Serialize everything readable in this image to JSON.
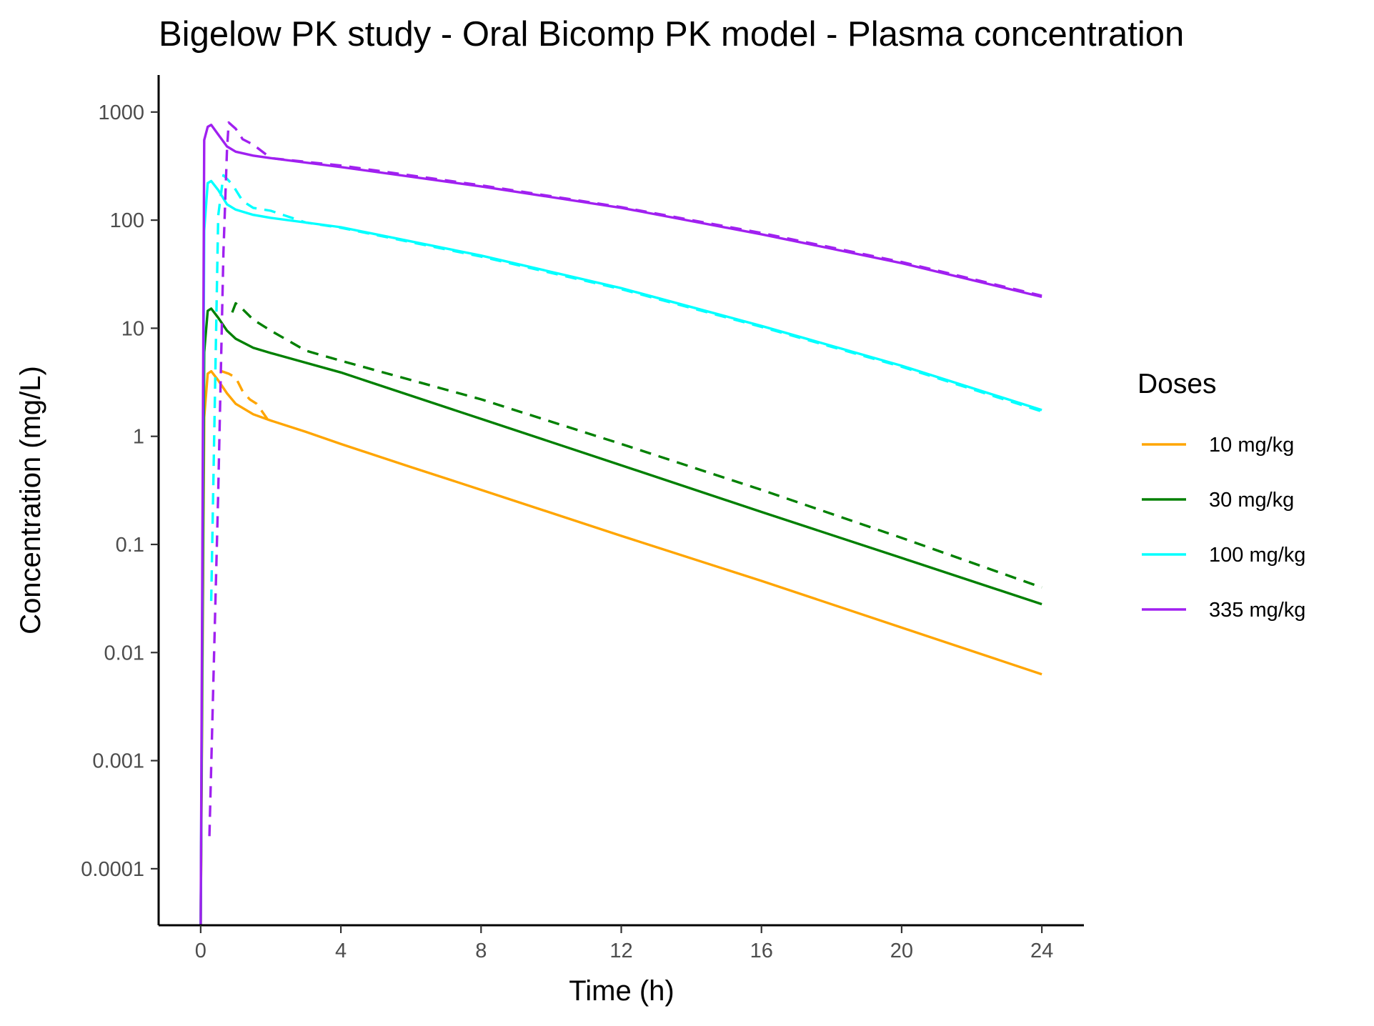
{
  "chart_data": {
    "type": "line",
    "title": "Bigelow PK study - Oral Bicomp PK model - Plasma concentration",
    "xlabel": "Time (h)",
    "ylabel": "Concentration (mg/L)",
    "x_scale": "linear",
    "y_scale": "log10",
    "xlim": [
      -1.2,
      25.2
    ],
    "ylim": [
      3e-05,
      2200
    ],
    "x_ticks": [
      0,
      4,
      8,
      12,
      16,
      20,
      24
    ],
    "y_ticks": [
      {
        "value": 0.0001,
        "label": "0.0001"
      },
      {
        "value": 0.001,
        "label": "0.001"
      },
      {
        "value": 0.01,
        "label": "0.01"
      },
      {
        "value": 0.1,
        "label": "0.1"
      },
      {
        "value": 1,
        "label": "1"
      },
      {
        "value": 10,
        "label": "10"
      },
      {
        "value": 100,
        "label": "100"
      },
      {
        "value": 1000,
        "label": "1000"
      }
    ],
    "grid": false,
    "legend": {
      "title": "Doses",
      "position": "right"
    },
    "series": [
      {
        "name": "10 mg/kg",
        "color": "#FFA500",
        "solid": [
          [
            0.0,
            2e-05
          ],
          [
            0.1,
            1.5
          ],
          [
            0.2,
            3.8
          ],
          [
            0.3,
            4.0
          ],
          [
            0.5,
            3.3
          ],
          [
            0.75,
            2.5
          ],
          [
            1.0,
            2.0
          ],
          [
            1.5,
            1.6
          ],
          [
            2.0,
            1.4
          ],
          [
            3.0,
            1.1
          ],
          [
            4.0,
            0.85
          ],
          [
            6.0,
            0.52
          ],
          [
            8.0,
            0.32
          ],
          [
            12.0,
            0.12
          ],
          [
            16.0,
            0.046
          ],
          [
            20.0,
            0.017
          ],
          [
            24.0,
            0.0063
          ]
        ],
        "dashed": [
          [
            0.6,
            4.0
          ],
          [
            0.8,
            3.8
          ],
          [
            1.0,
            3.5
          ],
          [
            1.2,
            2.6
          ],
          [
            1.4,
            2.2
          ],
          [
            1.6,
            2.0
          ],
          [
            1.9,
            1.45
          ]
        ]
      },
      {
        "name": "30 mg/kg",
        "color": "#008000",
        "solid": [
          [
            0.0,
            2e-05
          ],
          [
            0.1,
            6.0
          ],
          [
            0.2,
            14.5
          ],
          [
            0.3,
            15.2
          ],
          [
            0.5,
            12.5
          ],
          [
            0.75,
            9.5
          ],
          [
            1.0,
            8.0
          ],
          [
            1.5,
            6.6
          ],
          [
            2.0,
            5.9
          ],
          [
            4.0,
            3.9
          ],
          [
            8.0,
            1.45
          ],
          [
            12.0,
            0.54
          ],
          [
            16.0,
            0.2
          ],
          [
            20.0,
            0.075
          ],
          [
            24.0,
            0.028
          ]
        ],
        "dashed": [
          [
            0.9,
            14.0
          ],
          [
            1.0,
            17.0
          ],
          [
            1.2,
            15.0
          ],
          [
            1.5,
            12.0
          ],
          [
            2.0,
            9.5
          ],
          [
            3.0,
            6.2
          ],
          [
            4.0,
            5.0
          ],
          [
            8.0,
            2.2
          ],
          [
            12.0,
            0.85
          ],
          [
            16.0,
            0.32
          ],
          [
            20.0,
            0.115
          ],
          [
            24.0,
            0.04
          ]
        ]
      },
      {
        "name": "100 mg/kg",
        "color": "#00FFFF",
        "solid": [
          [
            0.0,
            2e-05
          ],
          [
            0.1,
            80.0
          ],
          [
            0.2,
            220.0
          ],
          [
            0.3,
            230.0
          ],
          [
            0.5,
            190.0
          ],
          [
            0.75,
            140.0
          ],
          [
            1.0,
            125.0
          ],
          [
            1.5,
            112.0
          ],
          [
            2.0,
            105.0
          ],
          [
            4.0,
            86.0
          ],
          [
            8.0,
            47.0
          ],
          [
            12.0,
            23.5
          ],
          [
            16.0,
            10.5
          ],
          [
            20.0,
            4.5
          ],
          [
            24.0,
            1.75
          ]
        ],
        "dashed": [
          [
            0.3,
            0.03
          ],
          [
            0.5,
            110.0
          ],
          [
            0.65,
            260.0
          ],
          [
            0.9,
            215.0
          ],
          [
            1.2,
            150.0
          ],
          [
            1.5,
            130.0
          ],
          [
            2.0,
            122.0
          ],
          [
            3.0,
            95.0
          ],
          [
            4.0,
            85.0
          ],
          [
            8.0,
            46.0
          ],
          [
            12.0,
            23.0
          ],
          [
            16.0,
            10.3
          ],
          [
            20.0,
            4.4
          ],
          [
            24.0,
            1.7
          ]
        ]
      },
      {
        "name": "335 mg/kg",
        "color": "#A020F0",
        "solid": [
          [
            0.0,
            2e-05
          ],
          [
            0.1,
            550.0
          ],
          [
            0.2,
            730.0
          ],
          [
            0.3,
            760.0
          ],
          [
            0.5,
            620.0
          ],
          [
            0.75,
            480.0
          ],
          [
            1.0,
            430.0
          ],
          [
            1.5,
            395.0
          ],
          [
            2.0,
            375.0
          ],
          [
            4.0,
            310.0
          ],
          [
            8.0,
            205.0
          ],
          [
            12.0,
            130.0
          ],
          [
            16.0,
            74.0
          ],
          [
            20.0,
            40.0
          ],
          [
            24.0,
            19.5
          ]
        ],
        "dashed": [
          [
            0.25,
            0.0002
          ],
          [
            0.5,
            0.3
          ],
          [
            0.65,
            50.0
          ],
          [
            0.75,
            450.0
          ],
          [
            0.8,
            800.0
          ],
          [
            1.0,
            700.0
          ],
          [
            1.2,
            560.0
          ],
          [
            1.5,
            500.0
          ],
          [
            2.0,
            375.0
          ],
          [
            4.0,
            320.0
          ],
          [
            8.0,
            210.0
          ],
          [
            12.0,
            132.0
          ],
          [
            16.0,
            76.0
          ],
          [
            20.0,
            41.0
          ],
          [
            24.0,
            20.0
          ]
        ]
      }
    ]
  }
}
